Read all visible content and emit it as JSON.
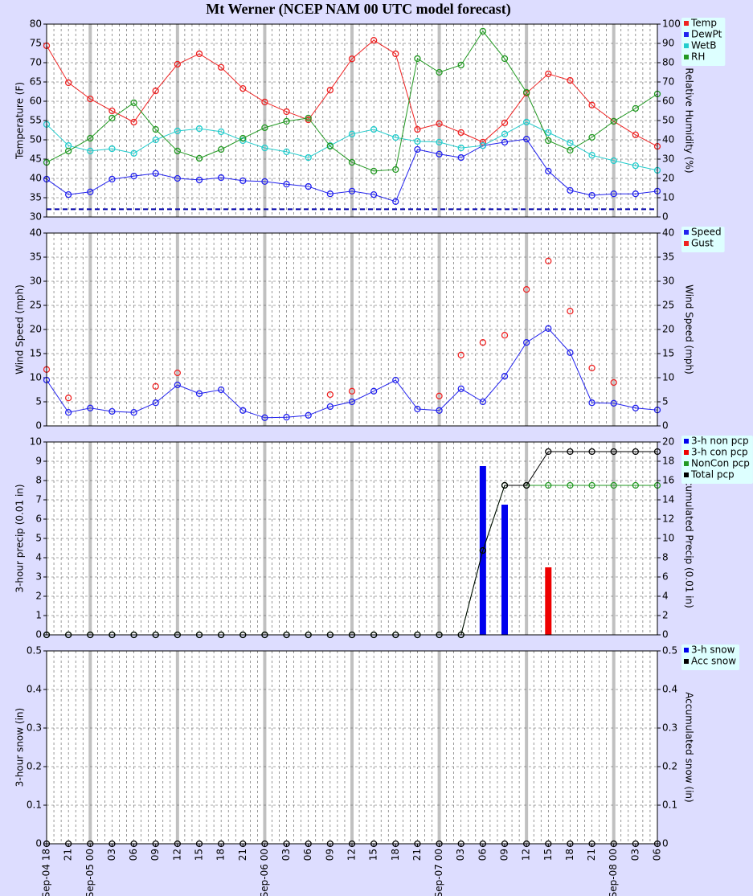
{
  "title": "Mt Werner (NCEP NAM 00 UTC model forecast)",
  "chart_data": [
    {
      "type": "line",
      "ylabel": "Temperature (F)",
      "y2label": "Relative Humidity (%)",
      "ylim": [
        30,
        80
      ],
      "yticks": [
        30,
        35,
        40,
        45,
        50,
        55,
        60,
        65,
        70,
        75,
        80
      ],
      "y2lim": [
        0,
        100
      ],
      "y2ticks": [
        0,
        10,
        20,
        30,
        40,
        50,
        60,
        70,
        80,
        90,
        100
      ],
      "grid": true,
      "legend": "outside-right",
      "reference_lines": [
        {
          "value": 32,
          "color": "#0000aa"
        }
      ],
      "series": [
        {
          "name": "Temp",
          "color": "#ee2222",
          "type": "line",
          "values": [
            74.4,
            64.8,
            60.6,
            57.5,
            54.6,
            62.7,
            69.6,
            72.3,
            68.8,
            63.3,
            59.8,
            57.3,
            55.2,
            62.9,
            71.0,
            75.8,
            72.3,
            52.7,
            54.2,
            51.9,
            49.4,
            54.4,
            62.1,
            67.1,
            65.4,
            59.0,
            54.8,
            51.3,
            48.3
          ]
        },
        {
          "name": "DewPt",
          "color": "#2222ee",
          "type": "line",
          "values": [
            39.8,
            35.8,
            36.5,
            39.8,
            40.6,
            41.3,
            40.0,
            39.6,
            40.2,
            39.4,
            39.2,
            38.5,
            37.9,
            36.0,
            36.7,
            35.8,
            34.0,
            47.5,
            46.3,
            45.4,
            48.5,
            49.4,
            50.2,
            41.9,
            36.9,
            35.6,
            36.0,
            36.0,
            36.7
          ]
        },
        {
          "name": "WetB",
          "color": "#22cccc",
          "type": "line",
          "values": [
            54.0,
            48.5,
            47.1,
            47.7,
            46.5,
            50.0,
            52.3,
            52.9,
            52.1,
            49.8,
            47.9,
            46.9,
            45.4,
            48.5,
            51.5,
            52.7,
            50.6,
            49.6,
            49.4,
            47.9,
            48.5,
            51.5,
            54.6,
            51.9,
            49.2,
            46.0,
            44.6,
            43.3,
            42.1
          ]
        },
        {
          "name": "RH",
          "color": "#229922",
          "type": "line",
          "axis": "y2",
          "values": [
            28.3,
            34.2,
            40.8,
            51.3,
            59.2,
            45.4,
            34.2,
            30.4,
            35.0,
            40.8,
            46.3,
            49.6,
            51.3,
            36.7,
            28.3,
            23.8,
            24.6,
            82.1,
            75.0,
            78.8,
            96.3,
            82.1,
            64.6,
            39.6,
            34.6,
            41.3,
            49.6,
            56.3,
            63.8
          ]
        }
      ]
    },
    {
      "type": "line",
      "ylabel": "Wind Speed (mph)",
      "y2label": "Wind Speed (mph)",
      "ylim": [
        0,
        40
      ],
      "yticks": [
        0,
        5,
        10,
        15,
        20,
        25,
        30,
        35,
        40
      ],
      "y2lim": [
        0,
        40
      ],
      "y2ticks": [
        0,
        5,
        10,
        15,
        20,
        25,
        30,
        35,
        40
      ],
      "grid": true,
      "legend": "outside-right",
      "series": [
        {
          "name": "Speed",
          "color": "#2222ee",
          "type": "line",
          "values": [
            9.5,
            2.8,
            3.7,
            3.0,
            2.8,
            4.8,
            8.5,
            6.7,
            7.5,
            3.2,
            1.7,
            1.8,
            2.2,
            4.0,
            5.0,
            7.2,
            9.5,
            3.5,
            3.2,
            7.7,
            5.0,
            10.3,
            17.3,
            20.2,
            15.2,
            4.8,
            4.7,
            3.7,
            3.3
          ]
        },
        {
          "name": "Gust",
          "color": "#ee2222",
          "type": "scatter",
          "values": [
            11.7,
            5.8,
            null,
            null,
            null,
            8.2,
            11.0,
            null,
            null,
            null,
            null,
            null,
            null,
            6.5,
            7.2,
            null,
            null,
            null,
            6.2,
            14.7,
            17.3,
            18.8,
            28.3,
            34.2,
            23.8,
            12.0,
            9.0,
            null,
            null
          ]
        }
      ]
    },
    {
      "type": "bar",
      "ylabel": "3-hour precip (0.01 in)",
      "y2label": "Accumulated Precip (0.01 in)",
      "ylim": [
        0,
        10
      ],
      "yticks": [
        0,
        1,
        2,
        3,
        4,
        5,
        6,
        7,
        8,
        9,
        10
      ],
      "y2lim": [
        0,
        20
      ],
      "y2ticks": [
        0,
        2,
        4,
        6,
        8,
        10,
        12,
        14,
        16,
        18,
        20
      ],
      "grid": true,
      "legend": "outside-right",
      "series": [
        {
          "name": "3-h non pcp",
          "color": "#0000ee",
          "type": "bar",
          "values": [
            0,
            0,
            0,
            0,
            0,
            0,
            0,
            0,
            0,
            0,
            0,
            0,
            0,
            0,
            0,
            0,
            0,
            0,
            0,
            0,
            8.75,
            6.75,
            0,
            0,
            0,
            0,
            0,
            0,
            0
          ]
        },
        {
          "name": "3-h con pcp",
          "color": "#ee0000",
          "type": "bar",
          "values": [
            0,
            0,
            0,
            0,
            0,
            0,
            0,
            0,
            0,
            0,
            0,
            0,
            0,
            0,
            0,
            0,
            0,
            0,
            0,
            0,
            0,
            0,
            0,
            3.5,
            0,
            0,
            0,
            0,
            0
          ]
        },
        {
          "name": "NonCon pcp",
          "color": "#229922",
          "type": "line",
          "axis": "y2",
          "values": [
            0,
            0,
            0,
            0,
            0,
            0,
            0,
            0,
            0,
            0,
            0,
            0,
            0,
            0,
            0,
            0,
            0,
            0,
            0,
            0,
            8.75,
            15.5,
            15.5,
            15.5,
            15.5,
            15.5,
            15.5,
            15.5,
            15.5
          ]
        },
        {
          "name": "Total pcp",
          "color": "#000000",
          "type": "line",
          "axis": "y2",
          "values": [
            0,
            0,
            0,
            0,
            0,
            0,
            0,
            0,
            0,
            0,
            0,
            0,
            0,
            0,
            0,
            0,
            0,
            0,
            0,
            0,
            8.75,
            15.5,
            15.5,
            19.0,
            19.0,
            19.0,
            19.0,
            19.0,
            19.0
          ]
        }
      ]
    },
    {
      "type": "bar",
      "ylabel": "3-hour snow (in)",
      "y2label": "Accumulated snow (in)",
      "ylim": [
        0,
        0.5
      ],
      "yticks": [
        0,
        0.1,
        0.2,
        0.3,
        0.4,
        0.5
      ],
      "y2lim": [
        0,
        0.5
      ],
      "y2ticks": [
        0,
        0.1,
        0.2,
        0.3,
        0.4,
        0.5
      ],
      "grid": true,
      "legend": "outside-right",
      "categories": [
        "Sep-04 18",
        "21",
        "Sep-05 00",
        "03",
        "06",
        "09",
        "12",
        "15",
        "18",
        "21",
        "Sep-06 00",
        "03",
        "06",
        "09",
        "12",
        "15",
        "18",
        "21",
        "Sep-07 00",
        "03",
        "06",
        "09",
        "12",
        "15",
        "18",
        "21",
        "Sep-08 00",
        "03",
        "06"
      ],
      "series": [
        {
          "name": "3-h snow",
          "color": "#0000ee",
          "type": "bar",
          "values": [
            0,
            0,
            0,
            0,
            0,
            0,
            0,
            0,
            0,
            0,
            0,
            0,
            0,
            0,
            0,
            0,
            0,
            0,
            0,
            0,
            0,
            0,
            0,
            0,
            0,
            0,
            0,
            0,
            0
          ]
        },
        {
          "name": "Acc snow",
          "color": "#000000",
          "type": "line",
          "axis": "y2",
          "values": [
            0,
            0,
            0,
            0,
            0,
            0,
            0,
            0,
            0,
            0,
            0,
            0,
            0,
            0,
            0,
            0,
            0,
            0,
            0,
            0,
            0,
            0,
            0,
            0,
            0,
            0,
            0,
            0,
            0
          ]
        }
      ]
    }
  ]
}
